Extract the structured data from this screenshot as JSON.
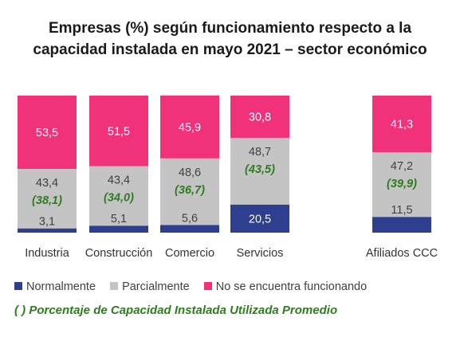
{
  "chart_data": {
    "type": "bar",
    "stacked": true,
    "title": "Empresas (%) según funcionamiento respecto a la capacidad instalada en mayo 2021 – sector económico",
    "title_lines": [
      "Empresas (%) según funcionamiento respecto a la",
      "capacidad instalada en mayo 2021 – sector económico"
    ],
    "categories": [
      "Industria",
      "Construcción",
      "Comercio",
      "Servicios",
      "Afiliados CCC"
    ],
    "series": [
      {
        "name": "Normalmente",
        "color": "#2e3f8f",
        "values": [
          3.1,
          5.1,
          5.6,
          20.5,
          11.5
        ]
      },
      {
        "name": "Parcialmente",
        "color": "#c4c4c4",
        "values": [
          43.4,
          43.4,
          48.6,
          48.7,
          47.2
        ]
      },
      {
        "name": "No se encuentra funcionando",
        "color": "#f2317b",
        "values": [
          53.5,
          51.5,
          45.9,
          30.8,
          41.3
        ]
      }
    ],
    "value_labels": [
      [
        "3,1",
        "5,1",
        "5,6",
        "20,5",
        "11,5"
      ],
      [
        "43,4",
        "43,4",
        "48,6",
        "48,7",
        "47,2"
      ],
      [
        "53,5",
        "51,5",
        "45,9",
        "30,8",
        "41,3"
      ]
    ],
    "capacity_utilized": [
      38.1,
      34.0,
      36.7,
      43.5,
      39.9
    ],
    "capacity_labels": [
      "(38,1)",
      "(34,0)",
      "(36,7)",
      "(43,5)",
      "(39,9)"
    ],
    "ylim": [
      0,
      100
    ],
    "grid": false,
    "legend_position": "bottom"
  },
  "colors": {
    "label_light": "#ffffff",
    "label_dark": "#404040",
    "capacity_label": "#2e7d1e"
  },
  "note": "( ) Porcentaje de Capacidad Instalada Utilizada Promedio"
}
